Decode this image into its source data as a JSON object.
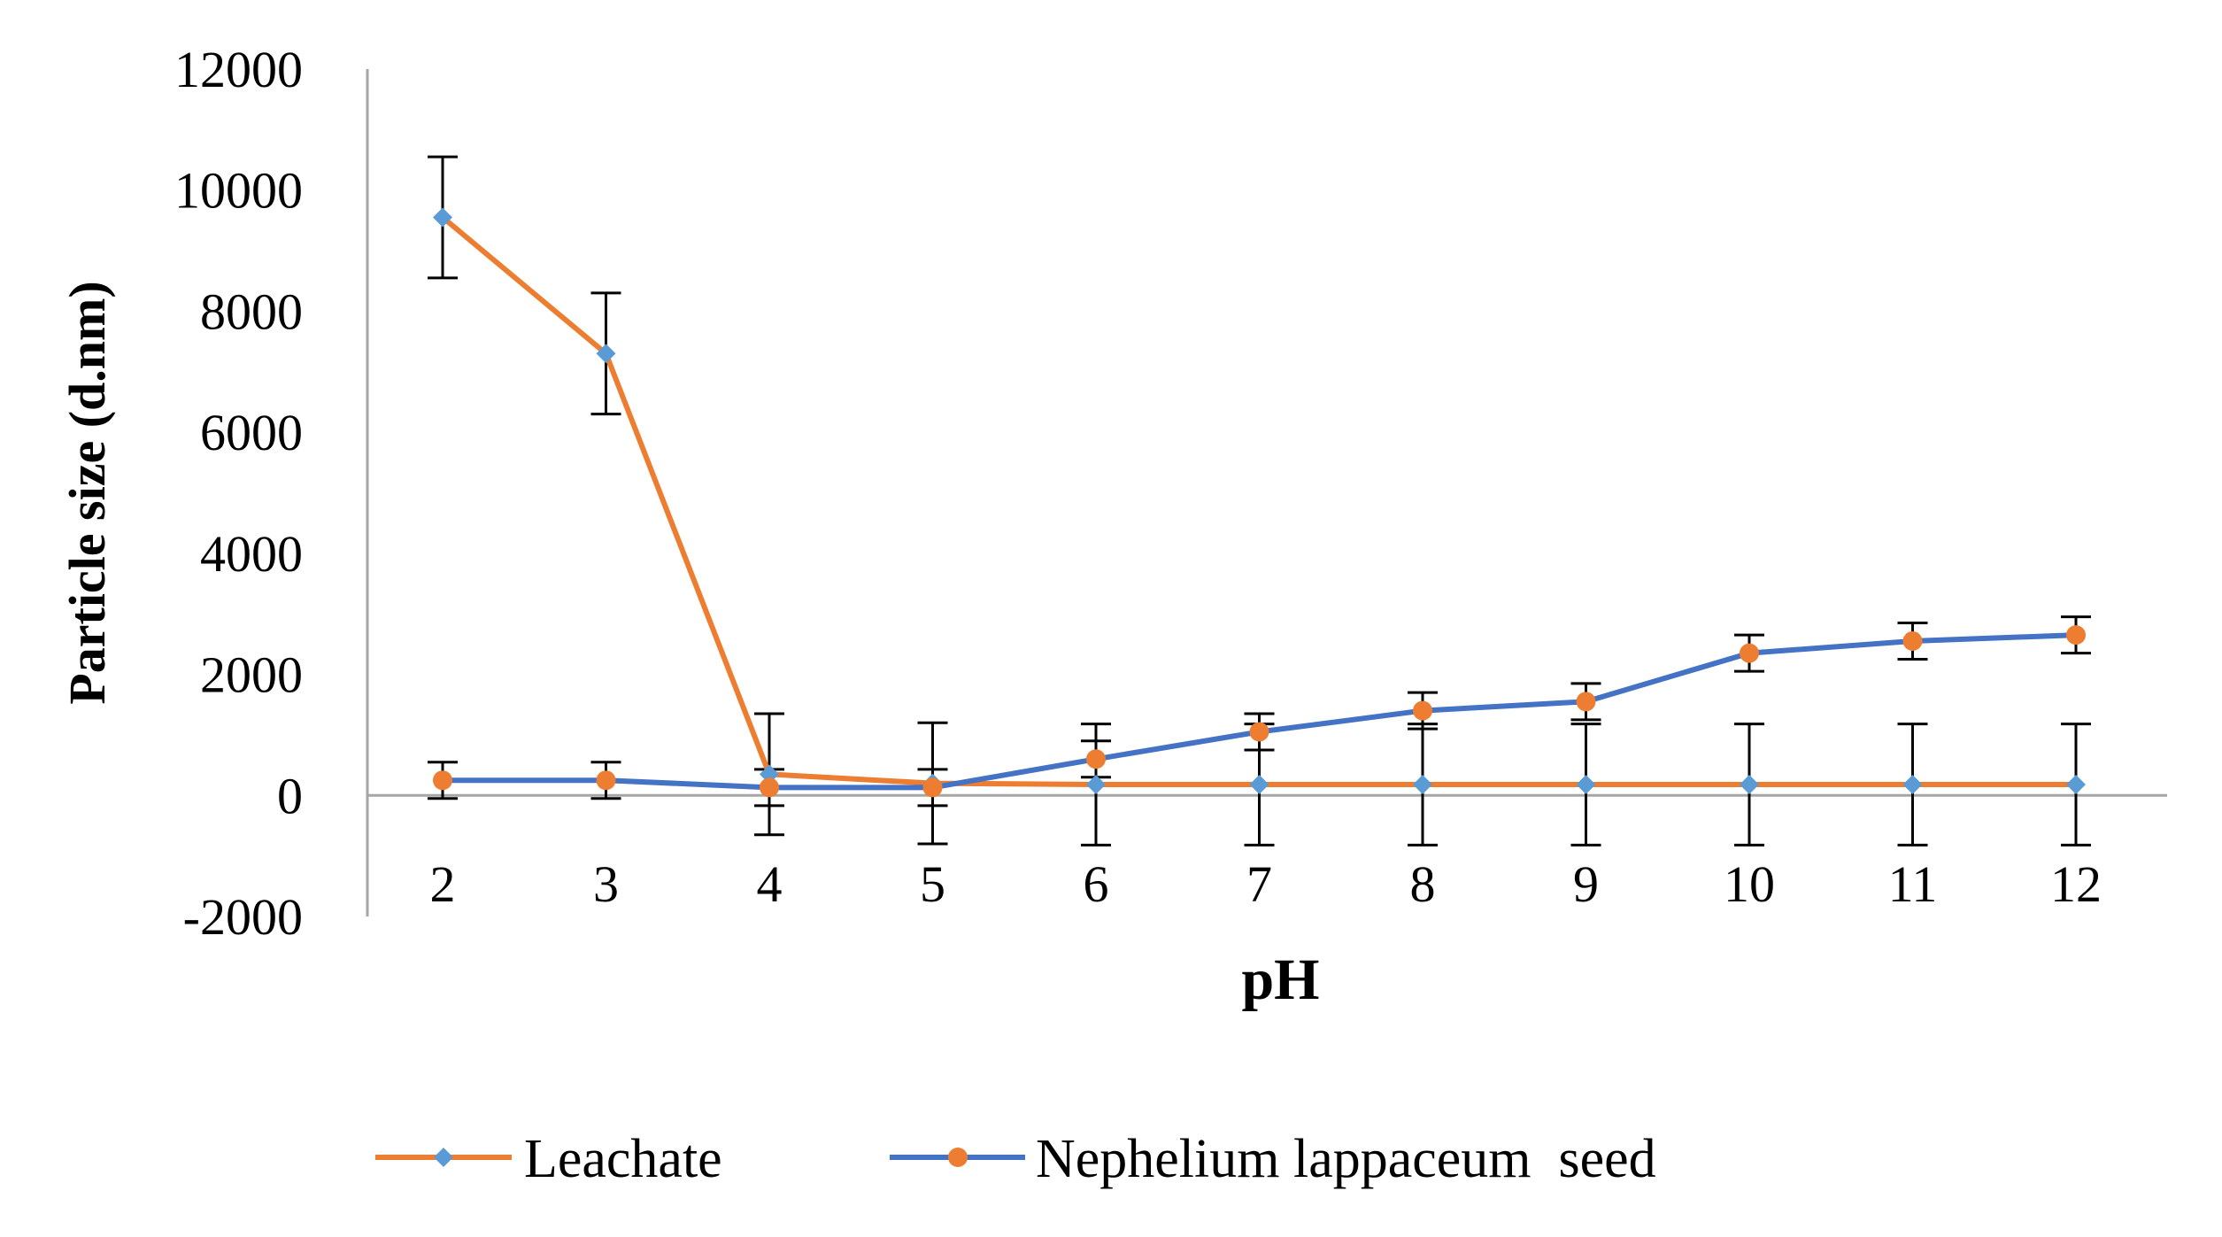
{
  "chart_data": {
    "type": "line",
    "title": "",
    "xlabel": "pH",
    "ylabel": "Particle size (d.nm)",
    "categories": [
      "2",
      "3",
      "4",
      "5",
      "6",
      "7",
      "8",
      "9",
      "10",
      "11",
      "12"
    ],
    "ylim": [
      -2000,
      12000
    ],
    "yticks": [
      "-2000",
      "0",
      "2000",
      "4000",
      "6000",
      "8000",
      "10000",
      "12000"
    ],
    "grid": false,
    "legend_position": "bottom",
    "series": [
      {
        "name": "Leachate",
        "color": "#ED7D31",
        "marker_color": "#5B9BD5",
        "marker": "diamond",
        "values": [
          9550,
          7300,
          350,
          200,
          180,
          180,
          180,
          180,
          180,
          180,
          180
        ],
        "error": [
          1000,
          1000,
          1000,
          1000,
          1000,
          1000,
          1000,
          1000,
          1000,
          1000,
          1000
        ]
      },
      {
        "name": "Nephelium lappaceum  seed",
        "color": "#4472C4",
        "marker_color": "#ED7D31",
        "marker": "circle",
        "values": [
          250,
          250,
          130,
          130,
          600,
          1050,
          1400,
          1550,
          2350,
          2550,
          2650
        ],
        "error": [
          300,
          300,
          300,
          300,
          300,
          300,
          300,
          300,
          300,
          300,
          300
        ]
      }
    ]
  }
}
